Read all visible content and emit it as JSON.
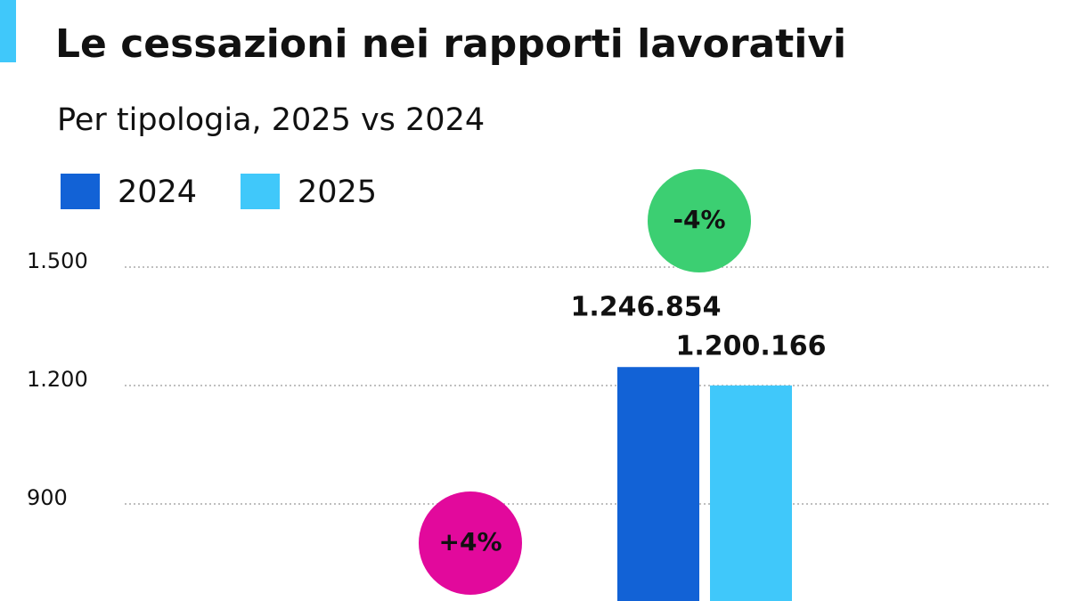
{
  "chart_data": {
    "type": "bar",
    "title": "Le cessazioni nei rapporti lavorativi",
    "subtitle": "Per tipologia, 2025 vs 2024",
    "categories": [
      null,
      null,
      null
    ],
    "series": [
      {
        "name": "2024",
        "color": "#1262d6",
        "values": [
          null,
          1246.854,
          null
        ],
        "value_labels": [
          null,
          "1.246.854",
          null
        ]
      },
      {
        "name": "2025",
        "color": "#40c8fa",
        "values": [
          null,
          1200.166,
          null
        ],
        "value_labels": [
          null,
          "1.200.166",
          null
        ]
      }
    ],
    "annotations": [
      {
        "text": "+4%",
        "color": "#e2099c"
      },
      {
        "text": "-4%",
        "color": "#3ccf72"
      }
    ],
    "ylim": [
      600,
      1500
    ],
    "yticks": [
      900,
      {
        "value": 1200,
        "label": "1.200"
      },
      {
        "value": 1500,
        "label": "1.500"
      }
    ],
    "grid": true,
    "legend": "top-left"
  }
}
